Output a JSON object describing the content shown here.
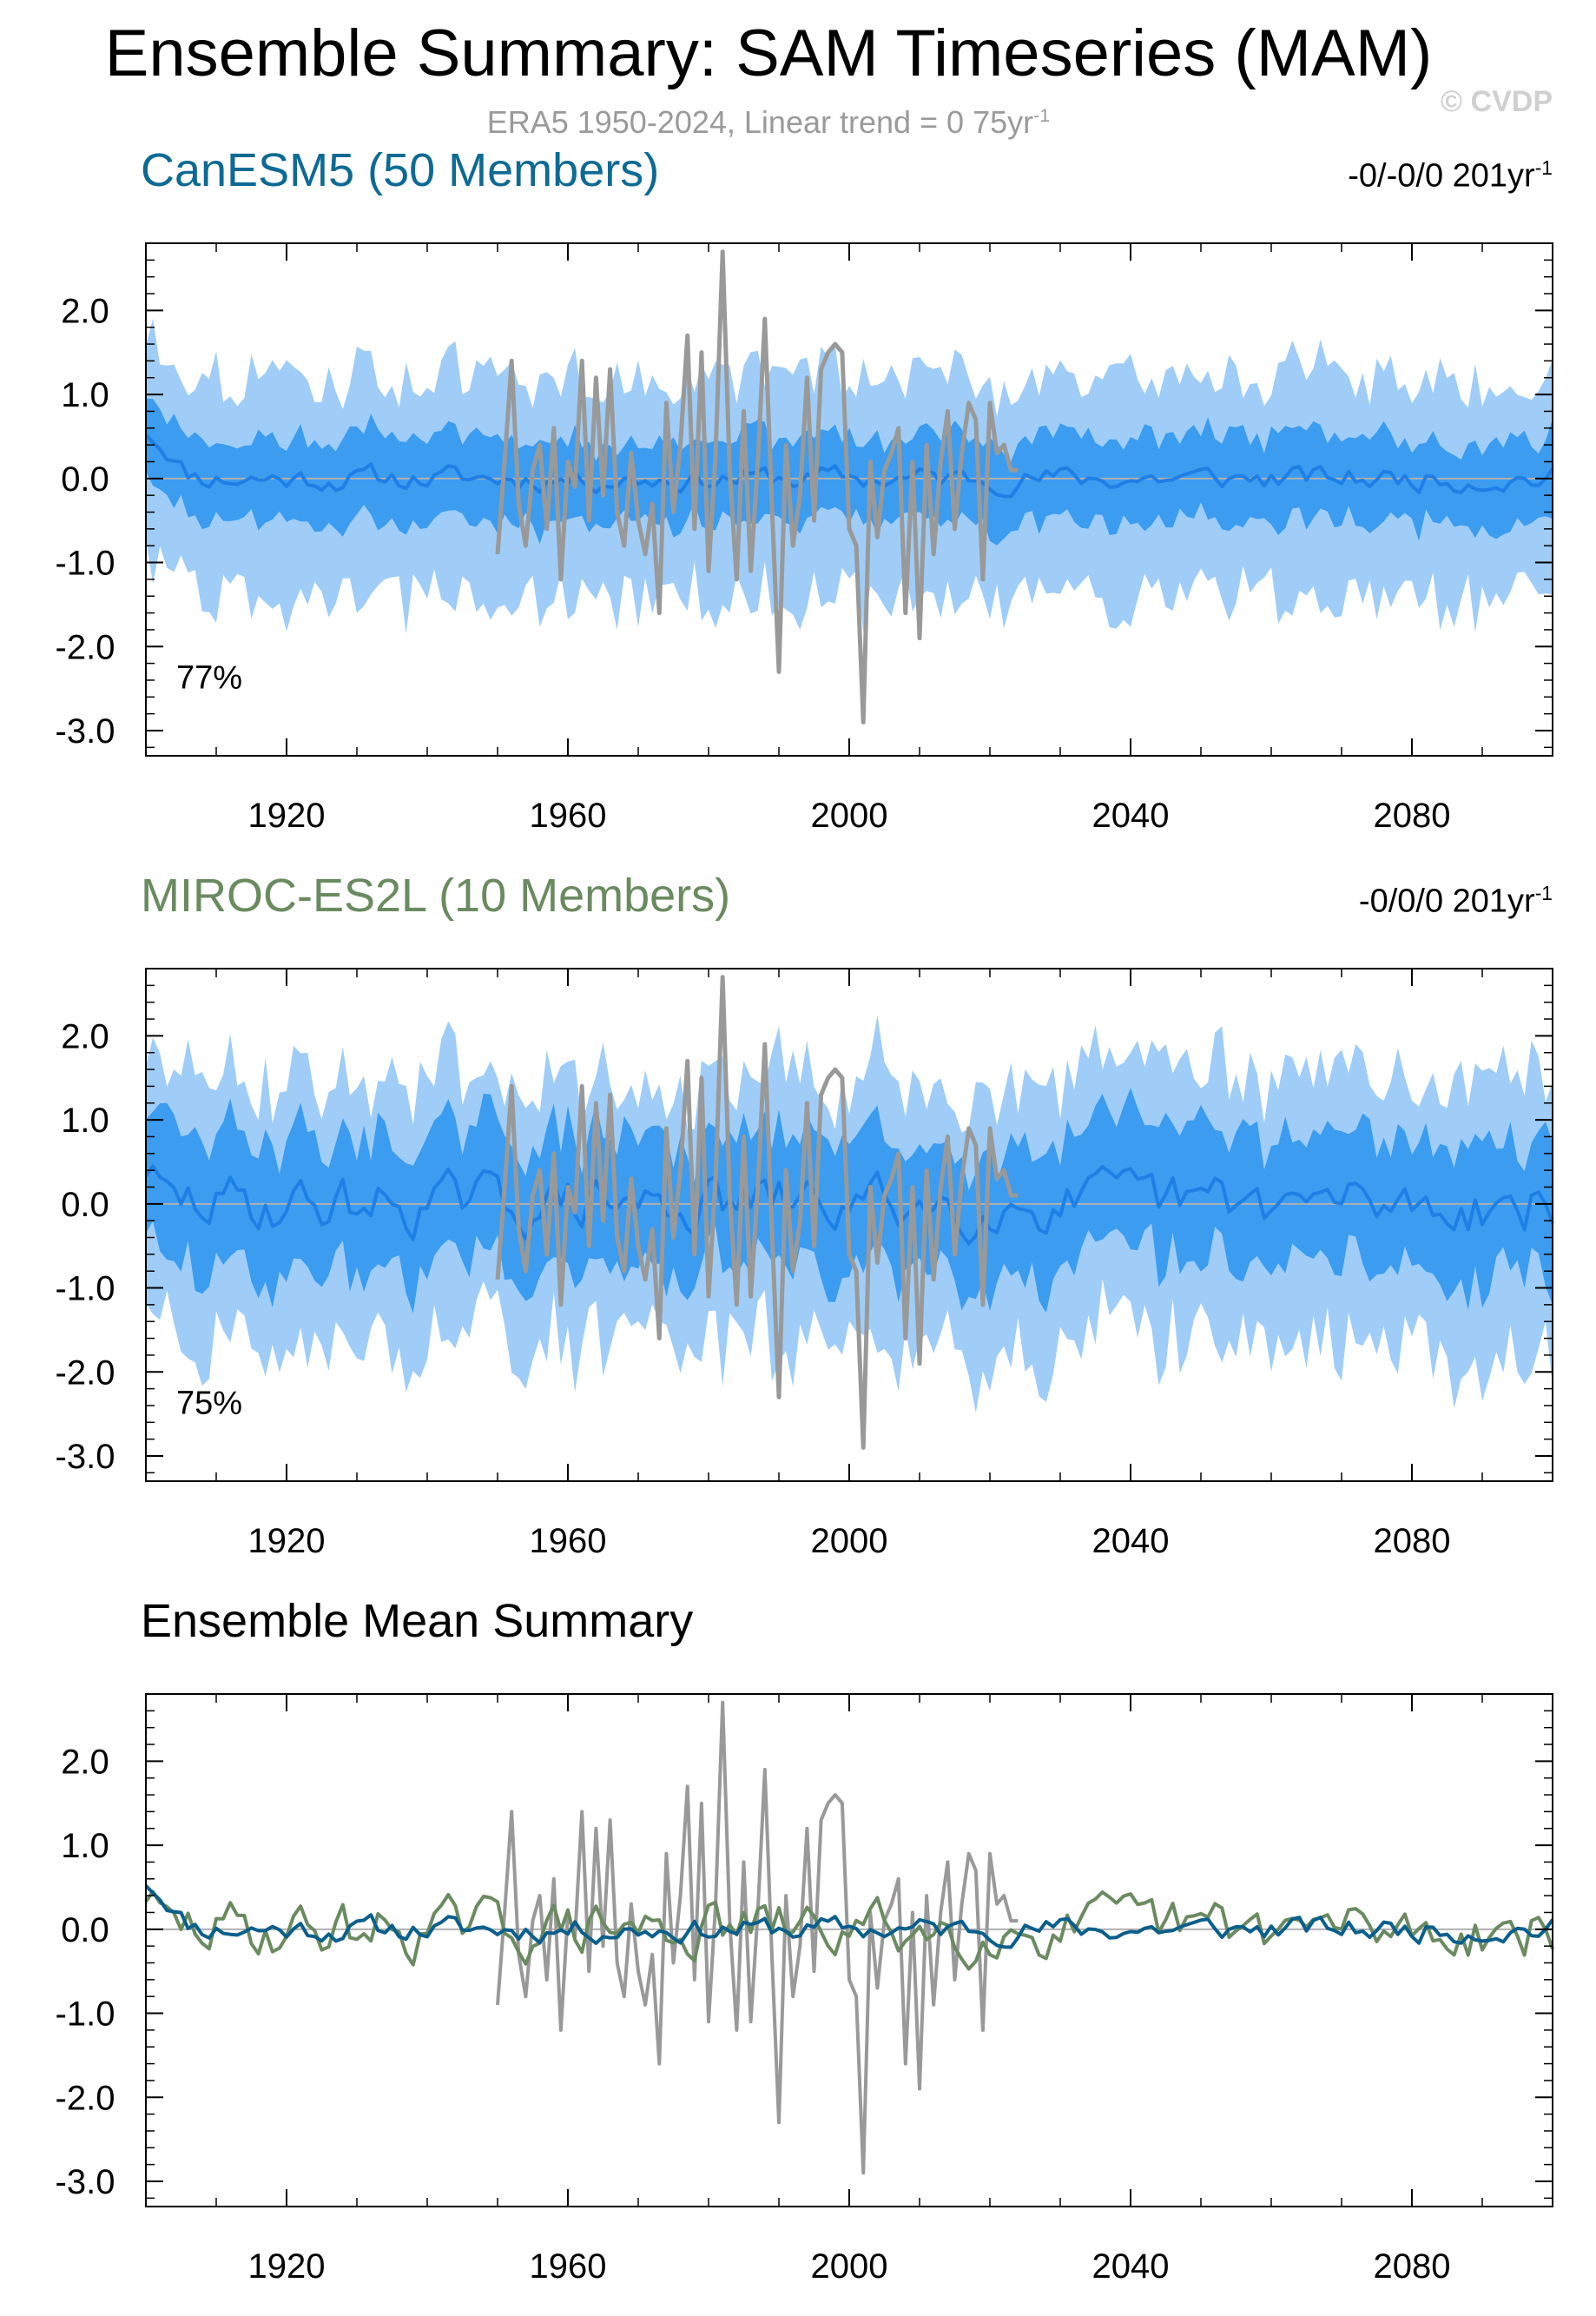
{
  "header": {
    "title": "Ensemble Summary: SAM Timeseries (MAM)",
    "subtitle_prefix": "ERA5 1950-2024, Linear trend = 0 75yr",
    "subtitle_sup": "-1",
    "watermark": "© CVDP"
  },
  "colors": {
    "outer_band": "#9fcdf8",
    "inner_band": "#3b9cf0",
    "model_mean_1": "#1e80e6",
    "obs": "#999999",
    "canesm5_line": "#0a5f8c",
    "miroc_line": "#6a8a60",
    "canesm5_title": "#0d6a94",
    "miroc_title": "#6a8a60",
    "zero_line": "#b0b0b0"
  },
  "chart_data": [
    {
      "type": "area",
      "panel": "canesm5",
      "title": "CanESM5 (50 Members)",
      "trend_text": "-0/-0/0 201yr",
      "trend_sup": "-1",
      "percent_label": "77%",
      "xlim": [
        1900,
        2100
      ],
      "ylim": [
        -3.3,
        2.8
      ],
      "xticks": [
        1920,
        1960,
        2000,
        2040,
        2080
      ],
      "xtick_labels": [
        "1920",
        "1960",
        "2000",
        "2040",
        "2080"
      ],
      "yticks": [
        2,
        1,
        0,
        -1,
        -2,
        -3
      ],
      "ytick_labels": [
        "2.0",
        "1.0",
        "0.0",
        "-1.0",
        "-2.0",
        "-3.0"
      ],
      "seed": 11,
      "mean_start": 0.55,
      "mean_amp": 0.12,
      "inner_width": 0.45,
      "outer_width": 1.1,
      "series": [
        {
          "name": "ensemble_range_outer",
          "style": "band"
        },
        {
          "name": "ensemble_range_inner",
          "style": "band"
        },
        {
          "name": "ensemble_mean",
          "style": "line"
        },
        {
          "name": "ERA5",
          "style": "line"
        }
      ]
    },
    {
      "type": "area",
      "panel": "miroc",
      "title": "MIROC-ES2L (10 Members)",
      "trend_text": "-0/0/0 201yr",
      "trend_sup": "-1",
      "percent_label": "75%",
      "xlim": [
        1900,
        2100
      ],
      "ylim": [
        -3.3,
        2.8
      ],
      "xticks": [
        1920,
        1960,
        2000,
        2040,
        2080
      ],
      "xtick_labels": [
        "1920",
        "1960",
        "2000",
        "2040",
        "2080"
      ],
      "yticks": [
        2,
        1,
        0,
        -1,
        -2,
        -3
      ],
      "ytick_labels": [
        "2.0",
        "1.0",
        "0.0",
        "-1.0",
        "-2.0",
        "-3.0"
      ],
      "seed": 29,
      "mean_start": 0.4,
      "mean_amp": 0.28,
      "inner_width": 0.7,
      "outer_width": 1.35,
      "series": [
        {
          "name": "ensemble_range_outer",
          "style": "band"
        },
        {
          "name": "ensemble_range_inner",
          "style": "band"
        },
        {
          "name": "ensemble_mean",
          "style": "line"
        },
        {
          "name": "ERA5",
          "style": "line"
        }
      ]
    },
    {
      "type": "line",
      "panel": "summary",
      "title": "Ensemble Mean Summary",
      "xlim": [
        1900,
        2100
      ],
      "ylim": [
        -3.3,
        2.8
      ],
      "xticks": [
        1920,
        1960,
        2000,
        2040,
        2080
      ],
      "xtick_labels": [
        "1920",
        "1960",
        "2000",
        "2040",
        "2080"
      ],
      "yticks": [
        2,
        1,
        0,
        -1,
        -2,
        -3
      ],
      "ytick_labels": [
        "2.0",
        "1.0",
        "0.0",
        "-1.0",
        "-2.0",
        "-3.0"
      ],
      "series": [
        {
          "name": "ERA5"
        },
        {
          "name": "CanESM5 ensemble mean"
        },
        {
          "name": "MIROC-ES2L ensemble mean"
        }
      ]
    }
  ],
  "era5_obs": {
    "years": [
      1950,
      1951,
      1952,
      1953,
      1954,
      1955,
      1956,
      1957,
      1958,
      1959,
      1960,
      1961,
      1962,
      1963,
      1964,
      1965,
      1966,
      1967,
      1968,
      1969,
      1970,
      1971,
      1972,
      1973,
      1974,
      1975,
      1976,
      1977,
      1978,
      1979,
      1980,
      1981,
      1982,
      1983,
      1984,
      1985,
      1986,
      1987,
      1988,
      1989,
      1990,
      1991,
      1992,
      1993,
      1994,
      1995,
      1996,
      1997,
      1998,
      1999,
      2000,
      2001,
      2002,
      2003,
      2004,
      2005,
      2006,
      2007,
      2008,
      2009,
      2010,
      2011,
      2012,
      2013,
      2014,
      2015,
      2016,
      2017,
      2018,
      2019,
      2020,
      2021,
      2022,
      2023,
      2024
    ],
    "values": [
      -0.9,
      0.2,
      1.4,
      -0.3,
      -0.8,
      0.1,
      0.4,
      -0.6,
      0.6,
      -1.2,
      0.2,
      -0.1,
      1.4,
      -0.5,
      1.2,
      -0.2,
      1.3,
      -0.4,
      -0.8,
      0.3,
      -0.5,
      -0.9,
      -0.3,
      -1.6,
      0.9,
      -0.4,
      0.4,
      1.7,
      -0.6,
      1.5,
      -1.1,
      0.3,
      2.7,
      0.1,
      -1.2,
      0.8,
      -1.1,
      0.2,
      1.9,
      -0.3,
      -2.3,
      0.4,
      -0.8,
      -0.2,
      1.2,
      -0.5,
      1.3,
      1.5,
      1.6,
      1.5,
      -0.6,
      -0.8,
      -2.9,
      0.2,
      -0.7,
      0.1,
      0.3,
      0.6,
      -1.6,
      0.2,
      -1.9,
      0.4,
      -0.9,
      0.2,
      0.8,
      -0.6,
      0.3,
      0.9,
      0.7,
      -1.2,
      0.9,
      0.3,
      0.4,
      0.1,
      0.1
    ]
  }
}
